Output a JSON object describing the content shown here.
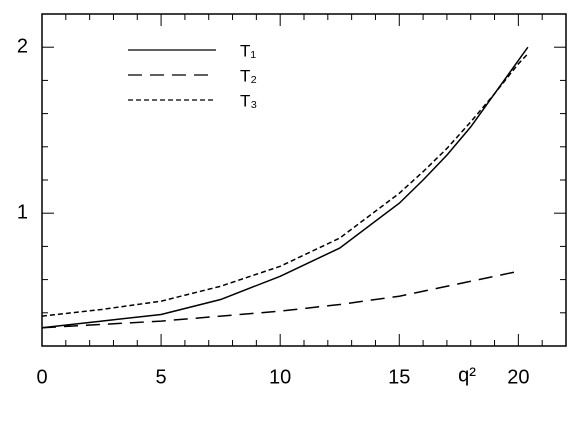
{
  "chart_data": {
    "type": "line",
    "x_label": "q²",
    "x": [
      0,
      2.5,
      5,
      7.5,
      10,
      12.5,
      15,
      16,
      17,
      18,
      19,
      20,
      20.4
    ],
    "series": [
      {
        "name": "T₁",
        "color": "#000",
        "dash": "none",
        "values": [
          0.31,
          0.35,
          0.39,
          0.48,
          0.62,
          0.79,
          1.06,
          1.2,
          1.35,
          1.52,
          1.72,
          1.92,
          2.0
        ]
      },
      {
        "name": "T₂",
        "color": "#000",
        "dash": "14 8",
        "values": [
          0.31,
          0.33,
          0.35,
          0.38,
          0.41,
          0.45,
          0.5,
          0.53,
          0.56,
          0.59,
          0.62,
          0.65,
          null
        ]
      },
      {
        "name": "T₃",
        "color": "#000",
        "dash": "5 3",
        "values": [
          0.38,
          0.42,
          0.47,
          0.56,
          0.68,
          0.85,
          1.12,
          1.25,
          1.39,
          1.55,
          1.72,
          1.9,
          1.96
        ]
      }
    ],
    "xlim": [
      0,
      22
    ],
    "ylim": [
      0.2,
      2.2
    ],
    "xticks": [
      0,
      5,
      10,
      15,
      20
    ],
    "yticks": [
      1,
      2
    ],
    "xminorticks": [
      1,
      2,
      3,
      4,
      6,
      7,
      8,
      9,
      11,
      12,
      13,
      14,
      16,
      17,
      18,
      19,
      21
    ],
    "yminorticks": [
      0.4,
      0.6,
      0.8,
      1.2,
      1.4,
      1.6,
      1.8
    ]
  }
}
